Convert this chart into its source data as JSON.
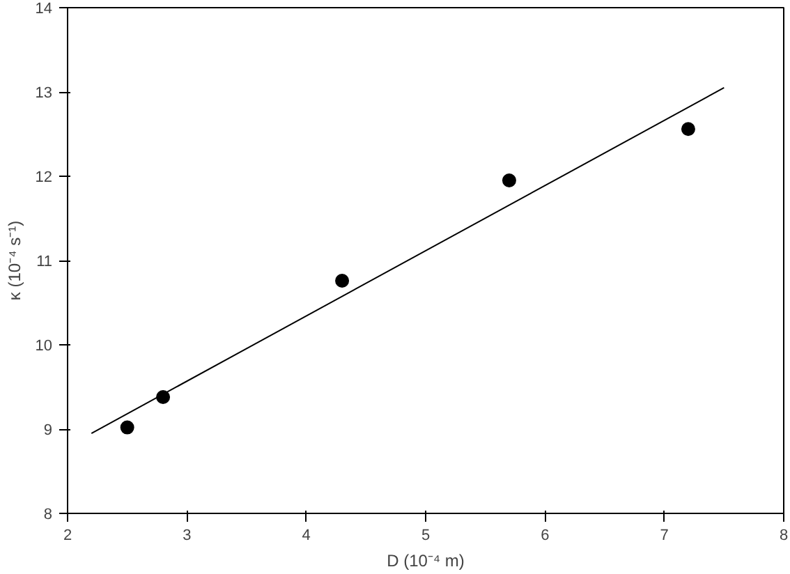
{
  "chart_data": {
    "type": "scatter",
    "xlabel": "D (10⁻⁴ m)",
    "ylabel": "κ (10⁻⁴ s⁻¹)",
    "xlim": [
      2,
      8
    ],
    "ylim": [
      8,
      14
    ],
    "xticks": [
      2,
      3,
      4,
      5,
      6,
      7,
      8
    ],
    "yticks": [
      8,
      9,
      10,
      11,
      12,
      13,
      14
    ],
    "grid": false,
    "series": [
      {
        "color": "#000000",
        "marker": "circle",
        "x": [
          2.5,
          2.8,
          4.3,
          5.7,
          7.2
        ],
        "values": [
          9.02,
          9.38,
          10.76,
          11.95,
          12.56
        ]
      },
      {
        "type": "line",
        "color": "#000000",
        "marker": "none",
        "x": [
          2.2,
          7.5
        ],
        "values": [
          8.95,
          13.05
        ]
      }
    ]
  }
}
